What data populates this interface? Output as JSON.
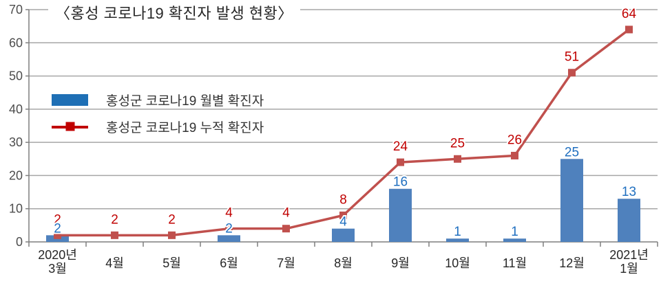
{
  "title": "〈홍성 코로나19 확진자 발생 현황〉",
  "legend": [
    {
      "label": "홍성군 코로나19 월별 확진자",
      "type": "bar",
      "color": "#1e6fb5"
    },
    {
      "label": "홍성군 코로나19 누적 확진자",
      "type": "line",
      "color": "#c00000"
    }
  ],
  "chart_data": {
    "type": "bar+line",
    "categories": [
      [
        "2020년",
        "3월"
      ],
      "4월",
      "5월",
      "6월",
      "7월",
      "8월",
      "9월",
      "10월",
      "11월",
      "12월",
      [
        "2021년",
        "1월"
      ]
    ],
    "series": [
      {
        "name": "홍성군 코로나19 월별 확진자",
        "type": "bar",
        "values": [
          2,
          0,
          0,
          2,
          0,
          4,
          16,
          1,
          1,
          25,
          13
        ],
        "color": "#4f81bd",
        "label_color": "#1f6fc0",
        "hide_zero": true
      },
      {
        "name": "홍성군 코로나19 누적 확진자",
        "type": "line",
        "values": [
          2,
          2,
          2,
          4,
          4,
          8,
          24,
          25,
          26,
          51,
          64
        ],
        "color": "#c0504d",
        "label_color": "#c00000"
      }
    ],
    "ylim": [
      0,
      70
    ],
    "yticks": [
      0,
      10,
      20,
      30,
      40,
      50,
      60,
      70
    ],
    "grid": true,
    "legend_position": "inside-left",
    "style": {
      "gridline": "#a6a6a6",
      "axis": "#7f7f7f",
      "y_tick_label": "#4d4d4d",
      "x_tick_label": "#262626",
      "label_halo": "#ffffff"
    }
  }
}
